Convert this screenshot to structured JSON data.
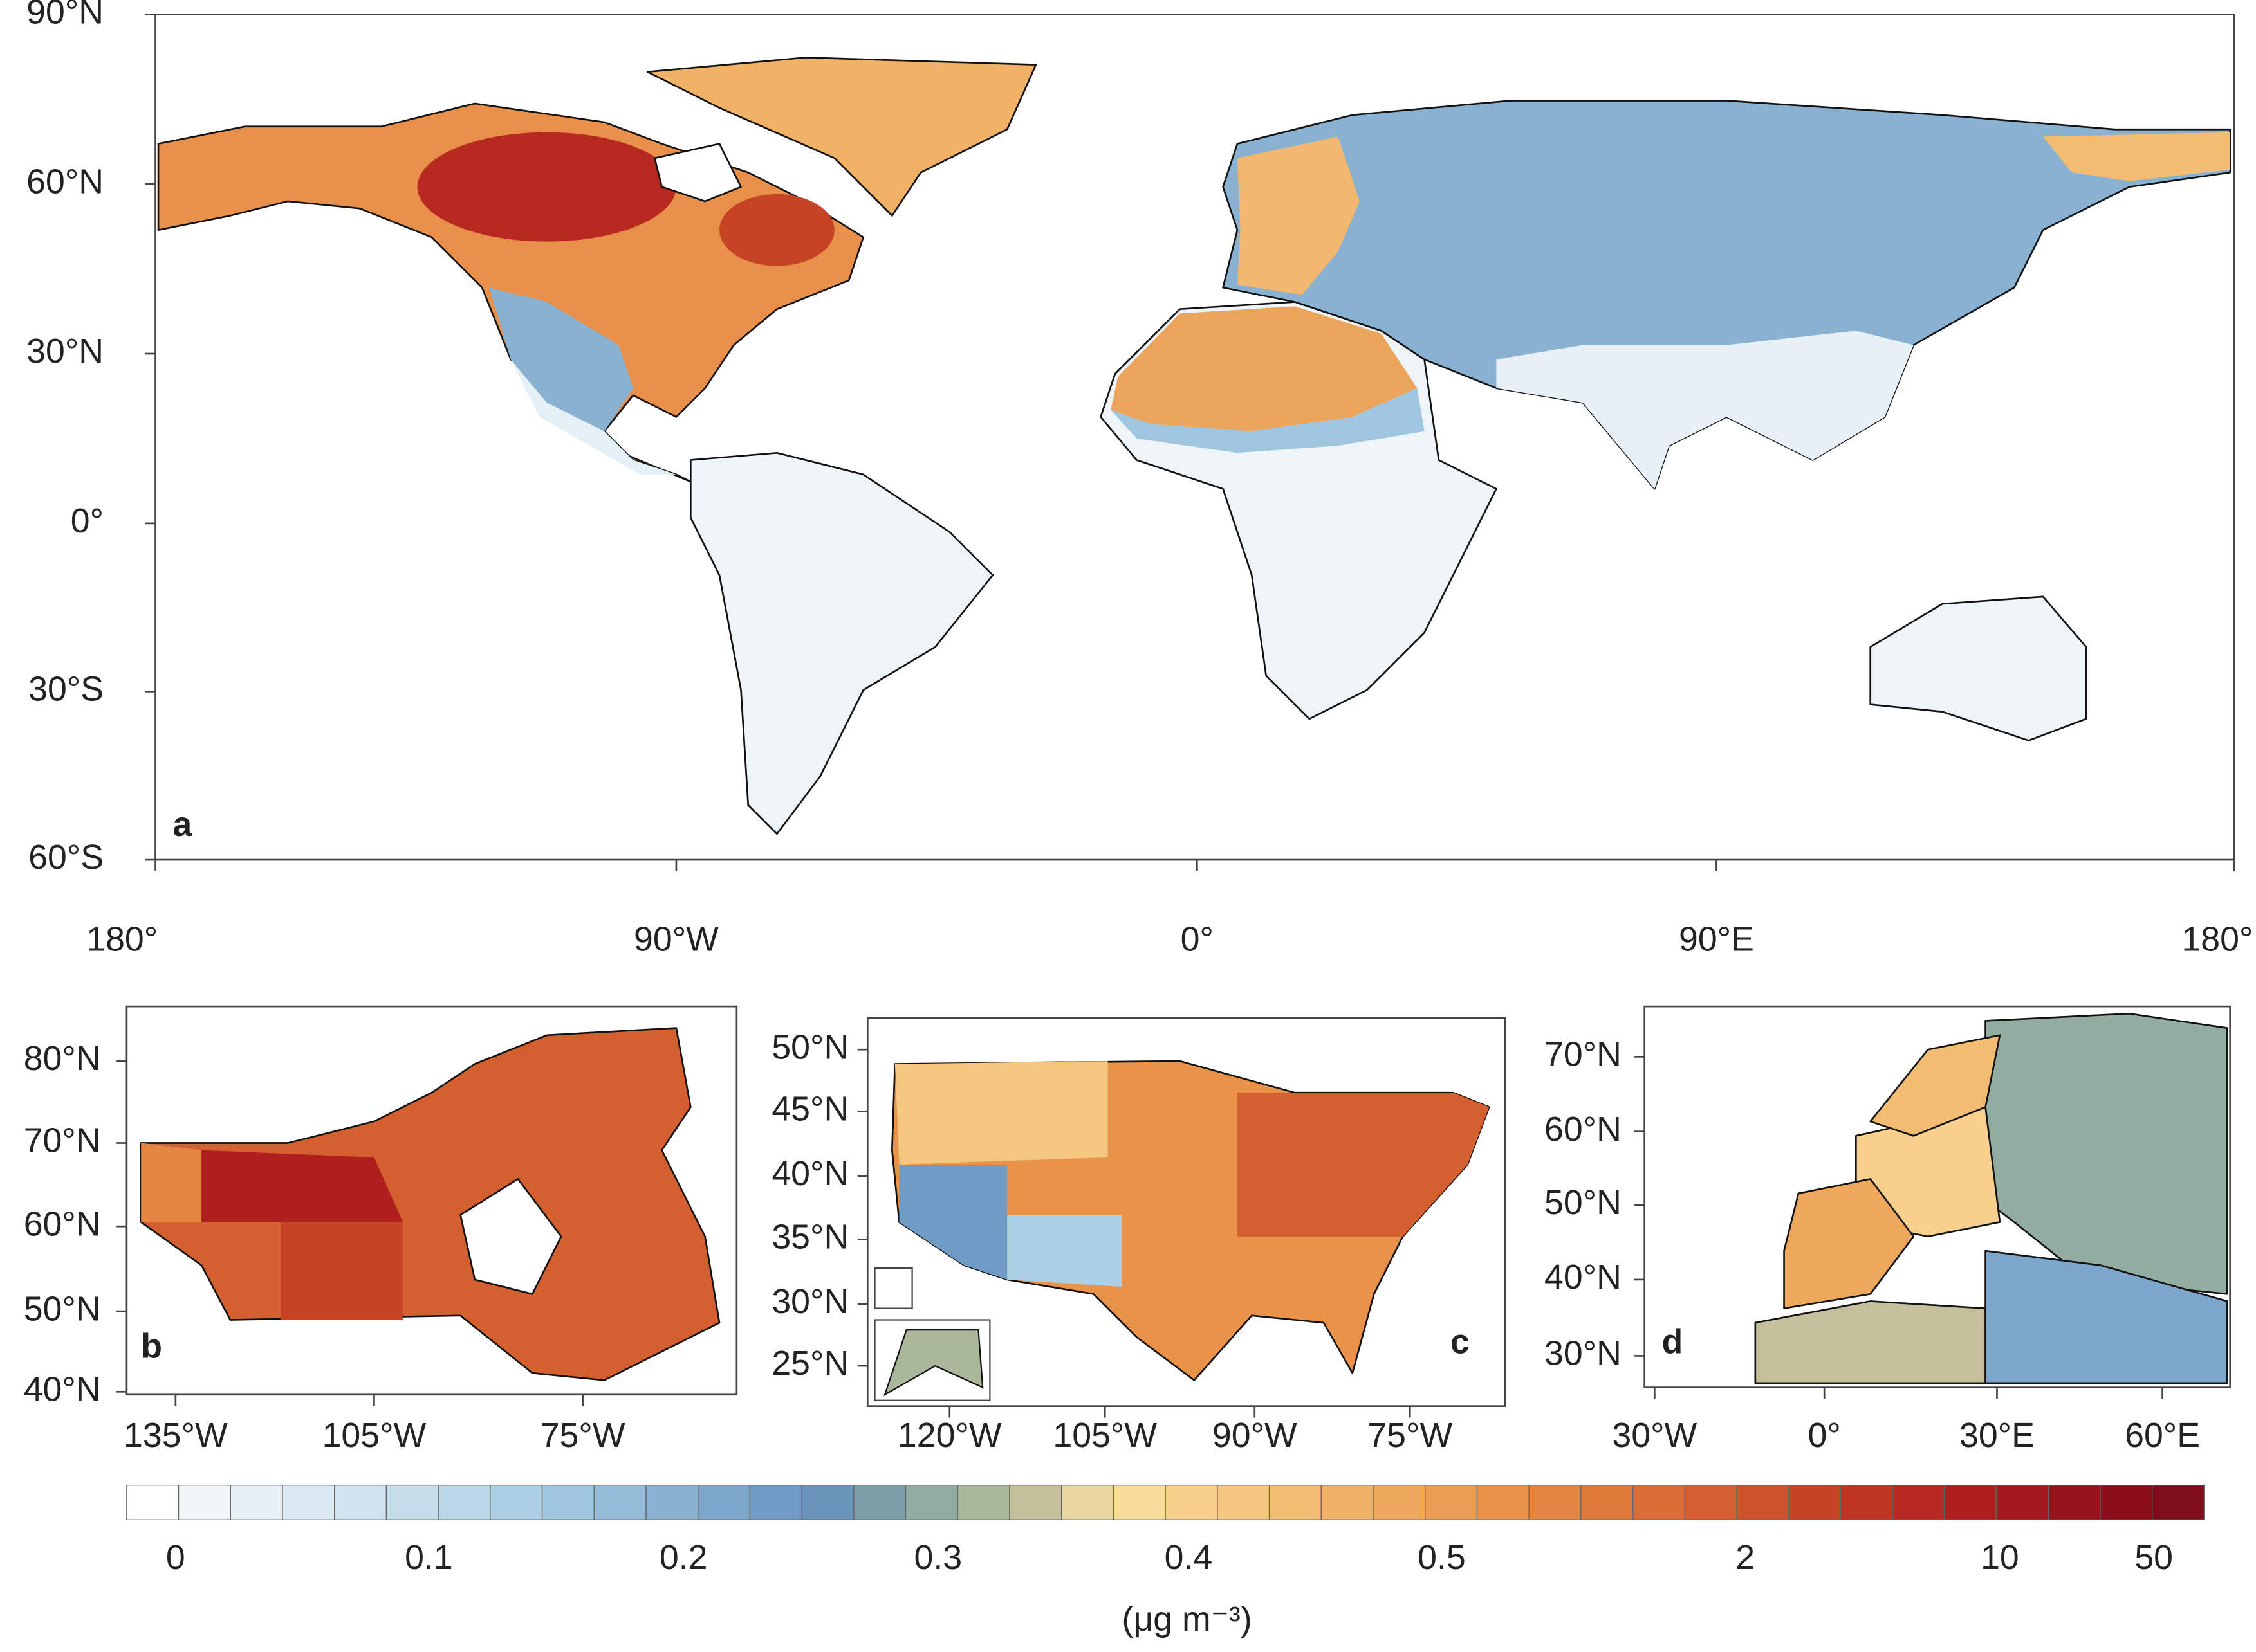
{
  "panels": [
    {
      "label": "a",
      "lat_ticks": [
        "90°N",
        "60°N",
        "30°N",
        "0°",
        "30°S",
        "60°S"
      ],
      "lon_ticks": [
        "180°",
        "90°W",
        "0°",
        "90°E",
        "180°"
      ]
    },
    {
      "label": "b",
      "lat_ticks": [
        "80°N",
        "70°N",
        "60°N",
        "50°N",
        "40°N"
      ],
      "lon_ticks": [
        "135°W",
        "105°W",
        "75°W"
      ]
    },
    {
      "label": "c",
      "lat_ticks": [
        "50°N",
        "45°N",
        "40°N",
        "35°N",
        "30°N",
        "25°N"
      ],
      "lon_ticks": [
        "120°W",
        "105°W",
        "90°W",
        "75°W"
      ]
    },
    {
      "label": "d",
      "lat_ticks": [
        "70°N",
        "60°N",
        "50°N",
        "40°N",
        "30°N"
      ],
      "lon_ticks": [
        "30°W",
        "0°",
        "30°E",
        "60°E"
      ]
    }
  ],
  "colorbar": {
    "colors": [
      "#ffffff",
      "#f1f6f9",
      "#e6f0f5",
      "#dbeaf2",
      "#cfe4ee",
      "#c3dde9",
      "#b8d6e6",
      "#acd0e3",
      "#a0c6df",
      "#94bbd8",
      "#88b1d2",
      "#7ca6cc",
      "#6f9bc4",
      "#6a95b9",
      "#7b9ea8",
      "#93aca0",
      "#a9b79a",
      "#c4c09b",
      "#e8d6a0",
      "#f8dc9a",
      "#f6d08c",
      "#f4c67f",
      "#f2bc72",
      "#f0b266",
      "#eea85c",
      "#eb9e53",
      "#e8924a",
      "#e48642",
      "#df7a3b",
      "#da6d35",
      "#d4602f",
      "#cd5229",
      "#c64425",
      "#c03522",
      "#b8291f",
      "#ae1f1e",
      "#a3181c",
      "#97131b",
      "#8b0f1a",
      "#7e0c19"
    ],
    "tick_labels": [
      "0",
      "0.1",
      "0.2",
      "0.3",
      "0.4",
      "0.5",
      "2",
      "10",
      "50"
    ],
    "unit": "(μg m⁻³)"
  }
}
